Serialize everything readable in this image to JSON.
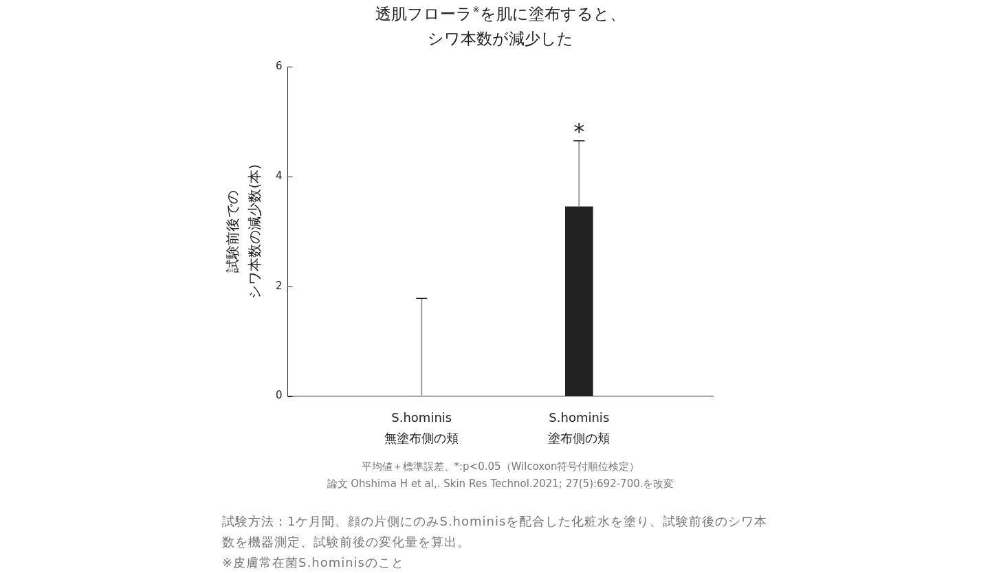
{
  "chart_data": {
    "type": "bar",
    "title": "透肌フローラ$^{※}$を肌に塗布すると、シワ本数が減少した",
    "ylabel": "試験前後でのシワ本数の減少数(本)",
    "categories": [
      "S.hominis\n無塗布側の頬",
      "S.hominis\n塗布側の頬"
    ],
    "values": [
      0,
      3.45
    ],
    "color": "#222222",
    "errors": [
      [
        0,
        1.78
      ],
      [
        3.45,
        4.65
      ]
    ],
    "ylim": [
      0,
      6
    ],
    "yticks": [
      0,
      2,
      4,
      6
    ],
    "annotations": [
      "*",
      "平均値＋標準誤差、*:p<0.05（Wilcoxon符号付順位検定）",
      "論文 Ohshima H et al,. Skin Res Technol.2021; 27(5):692-700.を改変",
      "試験方法：1ケ月間、顔の片側にのみS.hominisを配合した化粧水を塗り、試験前後のシワ本数を機器測定、試験前後の変化量を算出。",
      "※皮膚常在菌S.hominisのこと"
    ]
  }
}
